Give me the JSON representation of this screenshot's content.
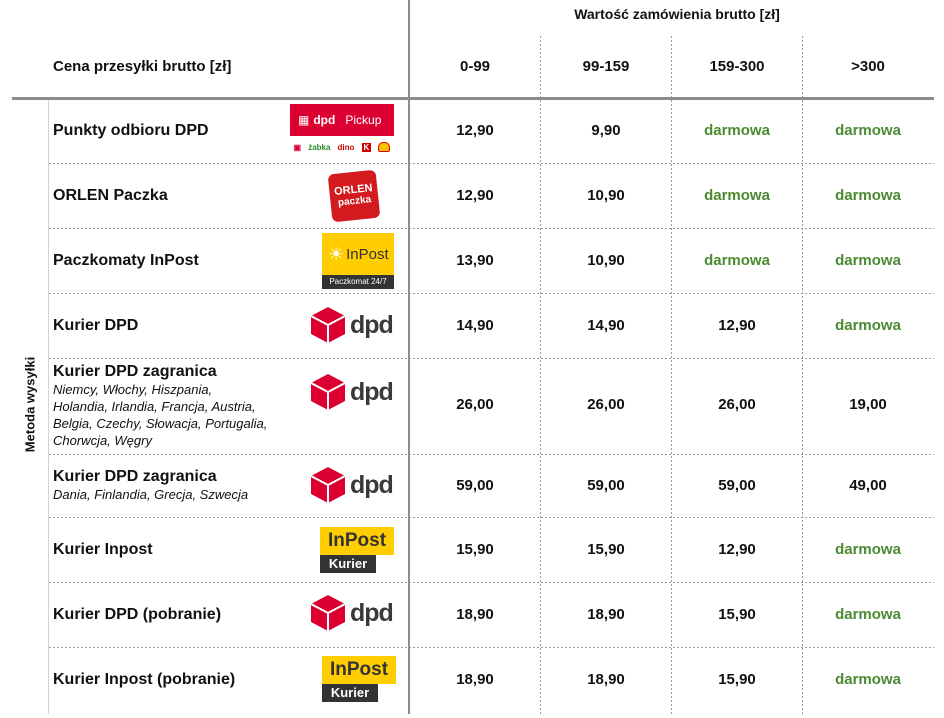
{
  "header": {
    "group_title": "Wartość zamówienia brutto [zł]",
    "row_label": "Cena przesyłki brutto [zł]",
    "columns": [
      "0-99",
      "99-159",
      "159-300",
      ">300"
    ],
    "vertical_label": "Metoda wysyłki"
  },
  "rows": [
    {
      "name": "Punkty odbioru DPD",
      "sub": "",
      "logo": "dpd-pickup-logo",
      "values": [
        "12,90",
        "9,90",
        "darmowa",
        "darmowa"
      ]
    },
    {
      "name": "ORLEN Paczka",
      "sub": "",
      "logo": "orlen-paczka-logo",
      "values": [
        "12,90",
        "10,90",
        "darmowa",
        "darmowa"
      ]
    },
    {
      "name": "Paczkomaty InPost",
      "sub": "",
      "logo": "inpost-paczkomat-logo",
      "values": [
        "13,90",
        "10,90",
        "darmowa",
        "darmowa"
      ]
    },
    {
      "name": "Kurier DPD",
      "sub": "",
      "logo": "dpd-logo",
      "values": [
        "14,90",
        "14,90",
        "12,90",
        "darmowa"
      ]
    },
    {
      "name": "Kurier DPD zagranica",
      "sub_lines": [
        "Niemcy, Włochy, Hiszpania,",
        "Holandia, Irlandia, Francja, Austria,",
        "Belgia, Czechy, Słowacja, Portugalia,",
        "Chorwcja, Węgry"
      ],
      "logo": "dpd-logo",
      "values": [
        "26,00",
        "26,00",
        "26,00",
        "19,00"
      ]
    },
    {
      "name": "Kurier DPD zagranica",
      "sub_lines": [
        "Dania, Finlandia, Grecja, Szwecja"
      ],
      "logo": "dpd-logo",
      "values": [
        "59,00",
        "59,00",
        "59,00",
        "49,00"
      ]
    },
    {
      "name": "Kurier Inpost",
      "sub": "",
      "logo": "inpost-kurier-logo",
      "values": [
        "15,90",
        "15,90",
        "12,90",
        "darmowa"
      ]
    },
    {
      "name": "Kurier DPD (pobranie)",
      "sub": "",
      "logo": "dpd-logo",
      "values": [
        "18,90",
        "18,90",
        "15,90",
        "darmowa"
      ]
    },
    {
      "name": "Kurier Inpost (pobranie)",
      "sub": "",
      "logo": "inpost-kurier-logo",
      "values": [
        "18,90",
        "18,90",
        "15,90",
        "darmowa"
      ]
    }
  ],
  "logos": {
    "dpd_pickup": {
      "brand": "dpd",
      "word": "Pickup",
      "partners": [
        "żabka",
        "dino",
        "K",
        "shell"
      ]
    },
    "orlen": {
      "line1": "ORLEN",
      "line2": "paczka"
    },
    "inpost_paczkomat": {
      "brand": "InPost",
      "caption": "Paczkomat 24/7"
    },
    "inpost_kurier": {
      "brand": "InPost",
      "caption": "Kurier"
    },
    "dpd": {
      "brand": "dpd"
    }
  },
  "colors": {
    "free": "#4b8a32",
    "dpd_red": "#dc0032",
    "inpost_yellow": "#ffcd00",
    "orlen_red": "#d21a1f"
  }
}
